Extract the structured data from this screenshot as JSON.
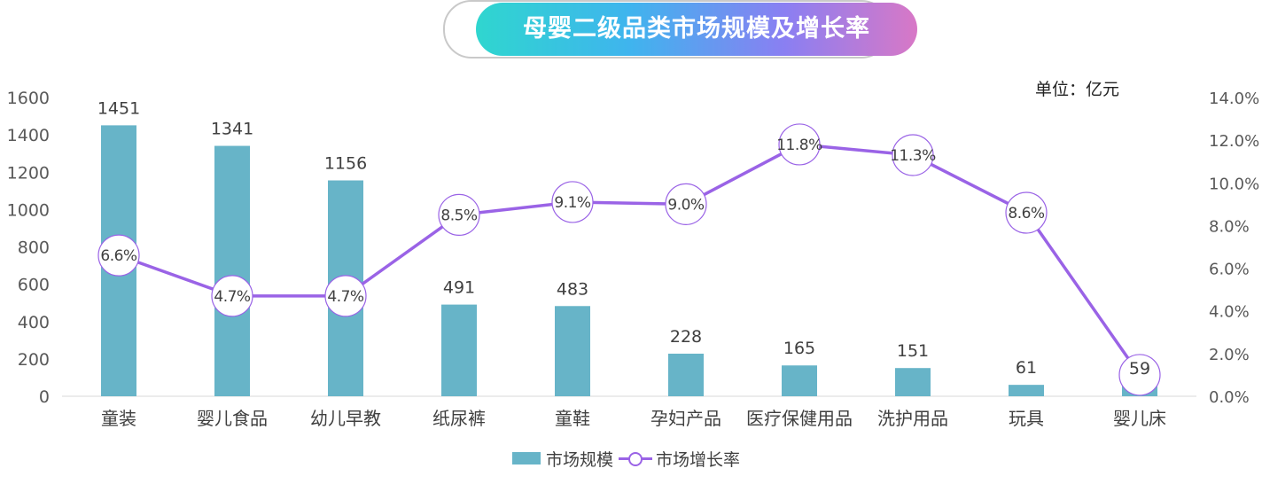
{
  "title": "母婴二级品类市场规模及增长率",
  "unit_label": "单位：亿元",
  "colors": {
    "bar": "#67b4c8",
    "line": "#9a63e6",
    "axis_text": "#595959"
  },
  "chart_data": {
    "type": "bar",
    "categories": [
      "童装",
      "婴儿食品",
      "幼儿早教",
      "纸尿裤",
      "童鞋",
      "孕妇产品",
      "医疗保健用品",
      "洗护用品",
      "玩具",
      "婴儿床"
    ],
    "series": [
      {
        "name": "市场规模",
        "type": "bar",
        "axis": "left",
        "values": [
          1451,
          1341,
          1156,
          491,
          483,
          228,
          165,
          151,
          61,
          59
        ],
        "labels": [
          "1451",
          "1341",
          "1156",
          "491",
          "483",
          "228",
          "165",
          "151",
          "61",
          "59"
        ]
      },
      {
        "name": "市场增长率",
        "type": "line",
        "axis": "right",
        "values": [
          6.6,
          4.7,
          4.7,
          8.5,
          9.1,
          9.0,
          11.8,
          11.3,
          8.6,
          1.0
        ],
        "labels": [
          "6.6%",
          "4.7%",
          "4.7%",
          "8.5%",
          "9.1%",
          "9.0%",
          "11.8%",
          "11.3%",
          "8.6%",
          ""
        ]
      }
    ],
    "y_left": {
      "range": [
        0,
        1600
      ],
      "ticks": [
        "0",
        "200",
        "400",
        "600",
        "800",
        "1000",
        "1200",
        "1400",
        "1600"
      ]
    },
    "y_right": {
      "range": [
        0,
        14
      ],
      "ticks": [
        "0.0%",
        "2.0%",
        "4.0%",
        "6.0%",
        "8.0%",
        "10.0%",
        "12.0%",
        "14.0%"
      ]
    },
    "grid": false,
    "legend_position": "bottom"
  }
}
